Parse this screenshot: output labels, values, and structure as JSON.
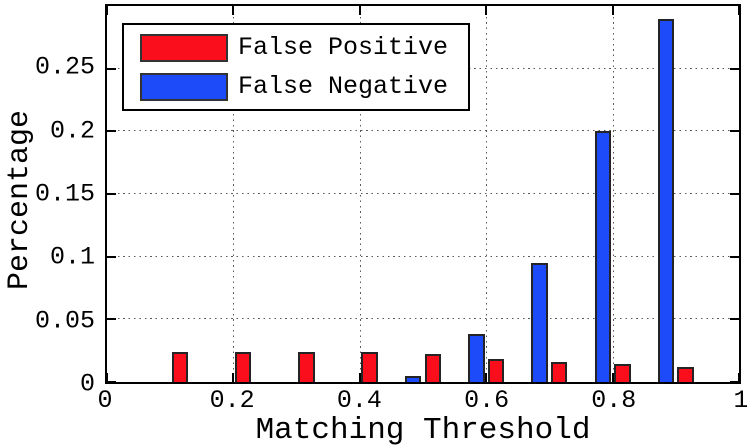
{
  "chart_data": {
    "type": "bar",
    "title": "",
    "xlabel": "Matching Threshold",
    "ylabel": "Percentage",
    "x": [
      0.1,
      0.2,
      0.3,
      0.4,
      0.5,
      0.6,
      0.7,
      0.8,
      0.9
    ],
    "series": [
      {
        "name": "False Positive",
        "color": "#fb0e1c",
        "edge_color": "#242424",
        "offset": 0.0155,
        "values": [
          0.024,
          0.024,
          0.024,
          0.024,
          0.022,
          0.018,
          0.016,
          0.014,
          0.012
        ]
      },
      {
        "name": "False Negative",
        "color": "#1e4bf9",
        "edge_color": "#242424",
        "offset": -0.0155,
        "values": [
          0,
          0,
          0,
          0,
          0.005,
          0.038,
          0.095,
          0.2,
          0.29
        ]
      }
    ],
    "bar_width": 0.026,
    "xlim": [
      0,
      1
    ],
    "ylim": [
      0,
      0.3
    ],
    "xticks": [
      0,
      0.2,
      0.4,
      0.6,
      0.8,
      1
    ],
    "xtick_labels": [
      "0",
      "0.2",
      "0.4",
      "0.6",
      "0.8",
      "1"
    ],
    "yticks": [
      0,
      0.05,
      0.1,
      0.15,
      0.2,
      0.25
    ],
    "ytick_labels": [
      "0",
      "0.05",
      "0.1",
      "0.15",
      "0.2",
      "0.25"
    ],
    "grid": true,
    "grid_style": "dotted",
    "legend_position": "top-left",
    "axis_color": "#000000"
  }
}
